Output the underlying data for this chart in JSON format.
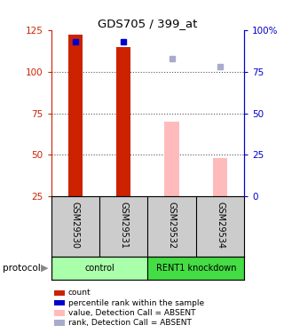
{
  "title": "GDS705 / 399_at",
  "samples": [
    "GSM29530",
    "GSM29531",
    "GSM29532",
    "GSM29534"
  ],
  "bar_values": [
    122,
    115,
    70,
    48
  ],
  "bar_colors": [
    "#cc2200",
    "#cc2200",
    "#ffbbbb",
    "#ffbbbb"
  ],
  "rank_values": [
    93,
    93,
    null,
    null
  ],
  "rank_color_present": "#0000cc",
  "absent_rank_values": [
    null,
    null,
    83,
    78
  ],
  "absent_rank_color": "#aaaacc",
  "ylim_left": [
    25,
    125
  ],
  "ylim_right": [
    0,
    100
  ],
  "yticks_left": [
    25,
    50,
    75,
    100,
    125
  ],
  "yticks_right": [
    0,
    25,
    50,
    75,
    100
  ],
  "ytick_right_labels": [
    "0",
    "25",
    "50",
    "75",
    "100%"
  ],
  "groups": [
    {
      "label": "control",
      "samples": [
        0,
        1
      ],
      "color": "#aaffaa"
    },
    {
      "label": "RENT1 knockdown",
      "samples": [
        2,
        3
      ],
      "color": "#44dd44"
    }
  ],
  "protocol_label": "protocol",
  "bg_color": "#ffffff",
  "grid_color": "#555555",
  "sample_box_color": "#cccccc",
  "left_axis_color": "#cc2200",
  "right_axis_color": "#0000cc",
  "bar_width": 0.3,
  "legend_items": [
    {
      "color": "#cc2200",
      "label": "count"
    },
    {
      "color": "#0000cc",
      "label": "percentile rank within the sample"
    },
    {
      "color": "#ffbbbb",
      "label": "value, Detection Call = ABSENT"
    },
    {
      "color": "#aaaacc",
      "label": "rank, Detection Call = ABSENT"
    }
  ]
}
